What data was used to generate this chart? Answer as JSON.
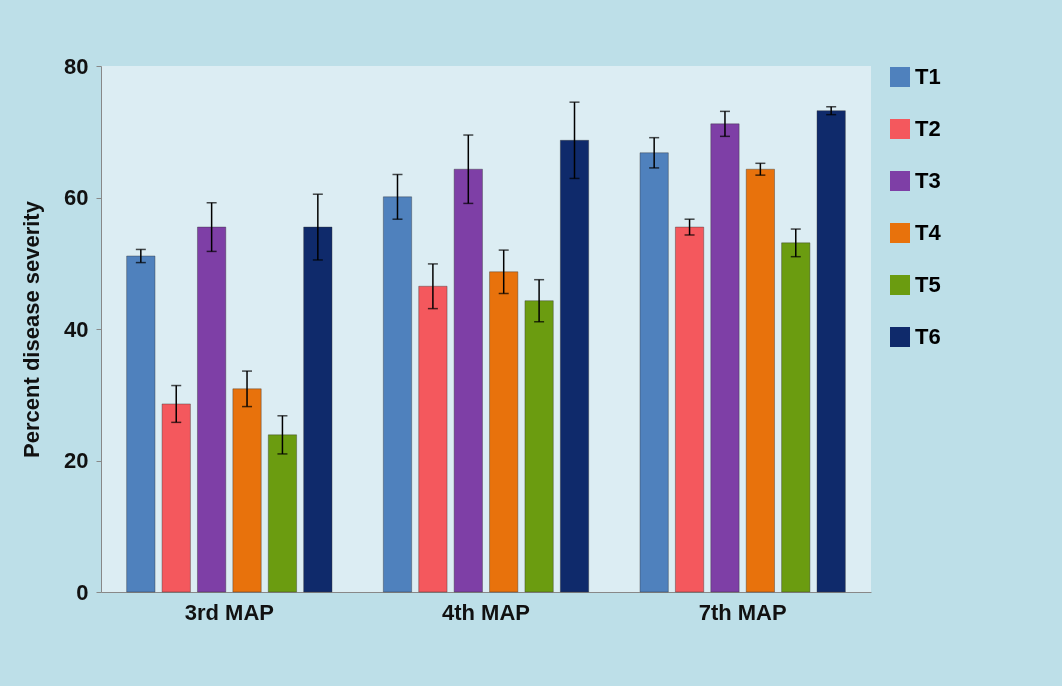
{
  "chart_data": {
    "type": "bar",
    "ylabel": "Percent disease severity",
    "categories": [
      "3rd MAP",
      "4th MAP",
      "7th MAP"
    ],
    "series": [
      {
        "name": "T1",
        "color": "#4f81bd",
        "values": [
          51.1,
          60.1,
          66.8
        ],
        "errors": [
          1.0,
          3.4,
          2.3
        ]
      },
      {
        "name": "T2",
        "color": "#f4585d",
        "values": [
          28.6,
          46.5,
          55.5
        ],
        "errors": [
          2.8,
          3.4,
          1.2
        ]
      },
      {
        "name": "T3",
        "color": "#7e3fa6",
        "values": [
          55.5,
          64.3,
          71.2
        ],
        "errors": [
          3.7,
          5.2,
          1.9
        ]
      },
      {
        "name": "T4",
        "color": "#e8720c",
        "values": [
          30.9,
          48.7,
          64.3
        ],
        "errors": [
          2.7,
          3.3,
          0.9
        ]
      },
      {
        "name": "T5",
        "color": "#6b9c10",
        "values": [
          23.9,
          44.3,
          53.1
        ],
        "errors": [
          2.9,
          3.2,
          2.1
        ]
      },
      {
        "name": "T6",
        "color": "#0f2a6b",
        "values": [
          55.5,
          68.7,
          73.2
        ],
        "errors": [
          5.0,
          5.8,
          0.6
        ]
      }
    ],
    "ylim": [
      0,
      80
    ],
    "yticks": [
      0,
      20,
      40,
      60,
      80
    ],
    "grid": false,
    "legend": "right"
  }
}
